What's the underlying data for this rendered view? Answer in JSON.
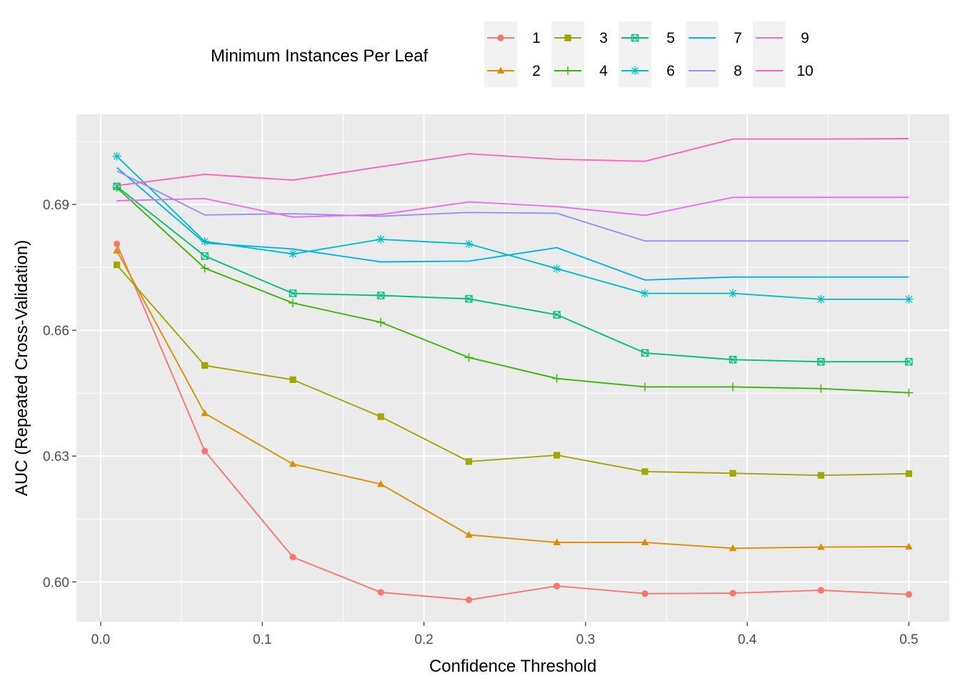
{
  "chart_data": {
    "type": "line",
    "xlabel": "Confidence Threshold",
    "ylabel": "AUC (Repeated Cross-Validation)",
    "xlim": [
      -0.015,
      0.525
    ],
    "ylim": [
      0.5905,
      0.7115
    ],
    "x_ticks": [
      0.0,
      0.1,
      0.2,
      0.3,
      0.4,
      0.5
    ],
    "x_tick_labels": [
      "0.0",
      "0.1",
      "0.2",
      "0.3",
      "0.4",
      "0.5"
    ],
    "y_ticks": [
      0.6,
      0.63,
      0.66,
      0.69
    ],
    "y_tick_labels": [
      "0.60",
      "0.63",
      "0.66",
      "0.69"
    ],
    "grid": true,
    "legend": {
      "title": "Minimum Instances Per Leaf",
      "position": "top"
    },
    "x": [
      0.01,
      0.0644,
      0.1189,
      0.1733,
      0.2278,
      0.2822,
      0.3367,
      0.3911,
      0.4456,
      0.5
    ],
    "series": [
      {
        "name": "1",
        "color": "#F8766D",
        "marker": "circle",
        "values": [
          0.6806,
          0.6312,
          0.6059,
          0.5975,
          0.5957,
          0.599,
          0.5972,
          0.5973,
          0.598,
          0.597
        ]
      },
      {
        "name": "2",
        "color": "#D89000",
        "marker": "triangle",
        "values": [
          0.679,
          0.6402,
          0.6281,
          0.6233,
          0.6112,
          0.6094,
          0.6094,
          0.608,
          0.6083,
          0.6084
        ]
      },
      {
        "name": "3",
        "color": "#A3A500",
        "marker": "square",
        "values": [
          0.6756,
          0.6516,
          0.6482,
          0.6394,
          0.6287,
          0.6302,
          0.6263,
          0.6259,
          0.6254,
          0.6258
        ]
      },
      {
        "name": "4",
        "color": "#39B600",
        "marker": "plus",
        "values": [
          0.694,
          0.6748,
          0.6665,
          0.6619,
          0.6535,
          0.6485,
          0.6465,
          0.6465,
          0.6461,
          0.6451
        ]
      },
      {
        "name": "5",
        "color": "#00BF7D",
        "marker": "square-x",
        "values": [
          0.6943,
          0.6777,
          0.6688,
          0.6683,
          0.6675,
          0.6637,
          0.6546,
          0.653,
          0.6525,
          0.6525
        ]
      },
      {
        "name": "6",
        "color": "#00BFC4",
        "marker": "star",
        "values": [
          0.7015,
          0.6812,
          0.6782,
          0.6817,
          0.6806,
          0.6747,
          0.6688,
          0.6688,
          0.6674,
          0.6674
        ]
      },
      {
        "name": "7",
        "color": "#00B0F6",
        "marker": "none",
        "values": [
          0.6988,
          0.6808,
          0.6794,
          0.6763,
          0.6765,
          0.6797,
          0.672,
          0.6727,
          0.6727,
          0.6727
        ]
      },
      {
        "name": "8",
        "color": "#9590FF",
        "marker": "none",
        "values": [
          0.698,
          0.6875,
          0.6878,
          0.6872,
          0.6881,
          0.6879,
          0.6813,
          0.6813,
          0.6813,
          0.6813
        ]
      },
      {
        "name": "9",
        "color": "#E76BF3",
        "marker": "none",
        "values": [
          0.6909,
          0.6914,
          0.687,
          0.6876,
          0.6906,
          0.6895,
          0.6874,
          0.6917,
          0.6917,
          0.6917
        ]
      },
      {
        "name": "10",
        "color": "#FF62BC",
        "marker": "none",
        "values": [
          0.6945,
          0.6972,
          0.6958,
          0.699,
          0.7021,
          0.7008,
          0.7003,
          0.7056,
          0.7056,
          0.7057
        ]
      }
    ]
  }
}
